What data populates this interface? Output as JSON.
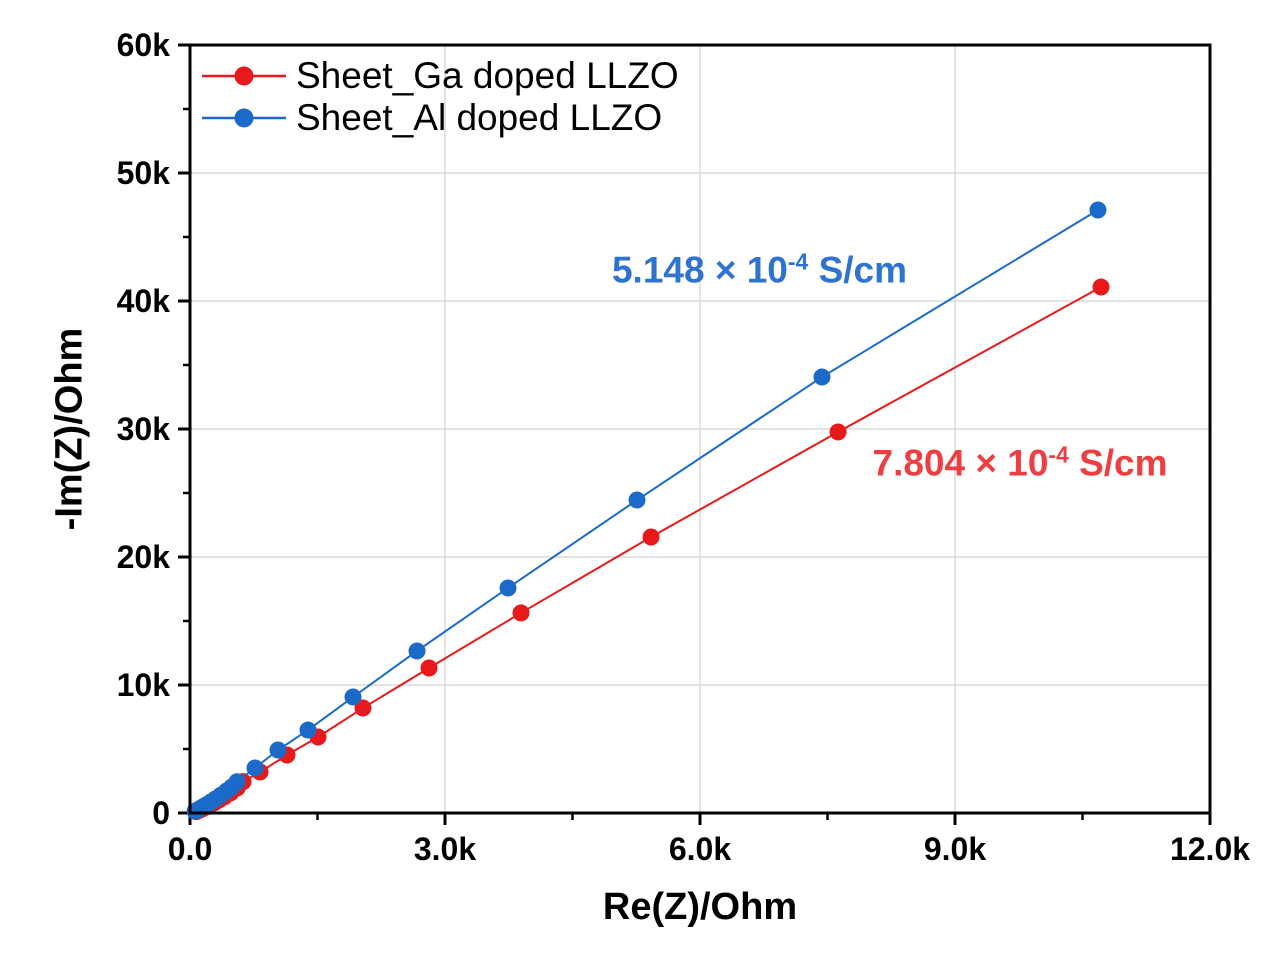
{
  "chart_data": {
    "type": "line",
    "title": "",
    "xlabel": "Re(Z)/Ohm",
    "ylabel": "-Im(Z)/Ohm",
    "xlim": [
      0,
      12000
    ],
    "ylim": [
      0,
      60000
    ],
    "grid": true,
    "legend_position": "top-left",
    "background_color": "#ffffff",
    "axis_color": "#000000",
    "grid_color": "#dadada",
    "x_ticks": [
      {
        "value": 0,
        "label": "0.0"
      },
      {
        "value": 3000,
        "label": "3.0k"
      },
      {
        "value": 6000,
        "label": "6.0k"
      },
      {
        "value": 9000,
        "label": "9.0k"
      },
      {
        "value": 12000,
        "label": "12.0k"
      }
    ],
    "y_ticks": [
      {
        "value": 0,
        "label": "0"
      },
      {
        "value": 10000,
        "label": "10k"
      },
      {
        "value": 20000,
        "label": "20k"
      },
      {
        "value": 30000,
        "label": "30k"
      },
      {
        "value": 40000,
        "label": "40k"
      },
      {
        "value": 50000,
        "label": "50k"
      },
      {
        "value": 60000,
        "label": "60k"
      }
    ],
    "x_minor_ticks": [
      1500,
      4500,
      7500,
      10500
    ],
    "y_minor_ticks": [
      5000,
      15000,
      25000,
      35000,
      45000,
      55000
    ],
    "series": [
      {
        "name": "Sheet_Ga doped LLZO",
        "color": "#e8191a",
        "points": [
          [
            75,
            110
          ],
          [
            110,
            220
          ],
          [
            150,
            340
          ],
          [
            190,
            470
          ],
          [
            235,
            620
          ],
          [
            285,
            800
          ],
          [
            340,
            1010
          ],
          [
            405,
            1270
          ],
          [
            480,
            1580
          ],
          [
            555,
            1950
          ],
          [
            624,
            2450
          ],
          [
            824,
            3200
          ],
          [
            1141,
            4530
          ],
          [
            1506,
            5940
          ],
          [
            2035,
            8200
          ],
          [
            2812,
            11330
          ],
          [
            3894,
            15630
          ],
          [
            5424,
            21560
          ],
          [
            7624,
            29770
          ],
          [
            10718,
            41090
          ]
        ]
      },
      {
        "name": "Sheet_Al doped LLZO",
        "color": "#1b6ac9",
        "points": [
          [
            60,
            140
          ],
          [
            95,
            260
          ],
          [
            130,
            390
          ],
          [
            165,
            530
          ],
          [
            205,
            690
          ],
          [
            250,
            880
          ],
          [
            300,
            1100
          ],
          [
            360,
            1380
          ],
          [
            430,
            1720
          ],
          [
            490,
            2020
          ],
          [
            553,
            2440
          ],
          [
            765,
            3520
          ],
          [
            1035,
            4920
          ],
          [
            1388,
            6480
          ],
          [
            1918,
            9060
          ],
          [
            2671,
            12660
          ],
          [
            3741,
            17580
          ],
          [
            5259,
            24450
          ],
          [
            7435,
            34060
          ],
          [
            10682,
            47110
          ]
        ]
      }
    ],
    "annotations": [
      {
        "text_base": "5.148 × 10",
        "text_sup": "-4",
        "text_unit": " S/cm",
        "color": "#2e72d2",
        "x": 6700,
        "y": 42400
      },
      {
        "text_base": "7.804 × 10",
        "text_sup": "-4",
        "text_unit": " S/cm",
        "color": "#ee3e41",
        "x": 9765,
        "y": 27350
      }
    ]
  }
}
